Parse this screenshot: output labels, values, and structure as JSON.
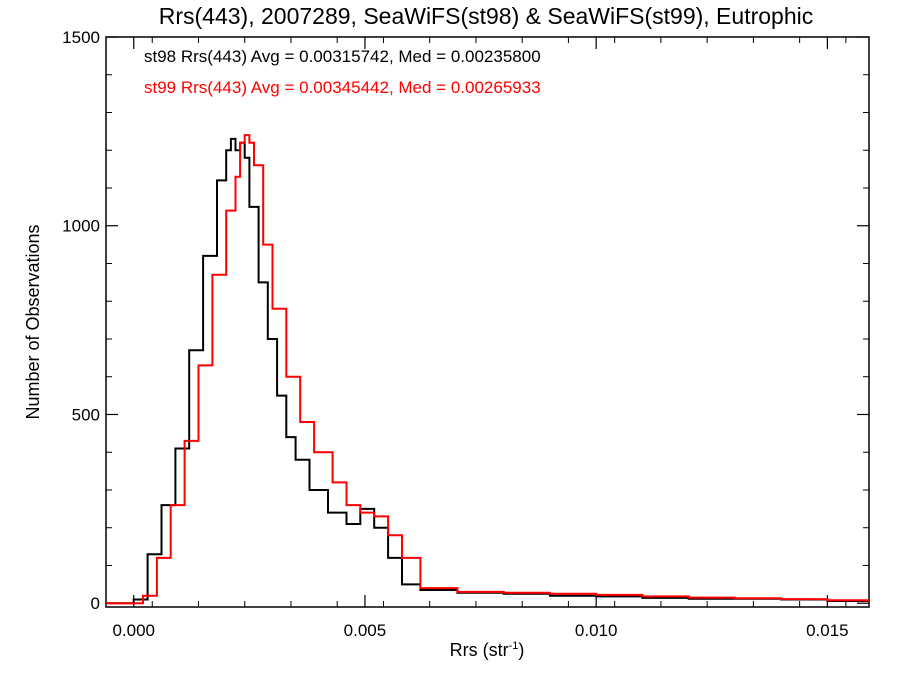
{
  "chart_data": {
    "type": "line",
    "title": "Rrs(443), 2007289, SeaWiFS(st98) & SeaWiFS(st99), Eutrophic",
    "xlabel": "Rrs (str",
    "xlabel_sup": "-1",
    "xlabel_close": ")",
    "ylabel": "Number of Observations",
    "xlim": [
      -0.0006,
      0.0159
    ],
    "ylim": [
      -10,
      1500
    ],
    "xticks": [
      0.0,
      0.005,
      0.01,
      0.015
    ],
    "xtick_labels": [
      "0.000",
      "0.005",
      "0.010",
      "0.015"
    ],
    "yticks": [
      0,
      500,
      1000,
      1500
    ],
    "ytick_labels": [
      "0",
      "500",
      "1000",
      "1500"
    ],
    "series": [
      {
        "legend": "st98 Rrs(443) Avg = 0.00315742, Med = 0.00235800",
        "color": "#000000",
        "x": [
          -0.0006,
          0.0,
          0.0003,
          0.0006,
          0.0009,
          0.0012,
          0.0015,
          0.0018,
          0.002,
          0.0021,
          0.0022,
          0.0023,
          0.0024,
          0.0025,
          0.0027,
          0.0029,
          0.0031,
          0.0033,
          0.0035,
          0.0038,
          0.0042,
          0.0046,
          0.0049,
          0.0052,
          0.0055,
          0.0058,
          0.0062,
          0.007,
          0.008,
          0.009,
          0.01,
          0.011,
          0.012,
          0.013,
          0.014,
          0.015,
          0.0159
        ],
        "y": [
          0,
          10,
          130,
          260,
          410,
          670,
          920,
          1120,
          1200,
          1230,
          1200,
          1220,
          1180,
          1050,
          850,
          700,
          550,
          440,
          380,
          300,
          240,
          210,
          250,
          200,
          120,
          50,
          35,
          28,
          25,
          20,
          18,
          14,
          12,
          12,
          10,
          6,
          3
        ]
      },
      {
        "legend": "st99 Rrs(443) Avg = 0.00345442, Med = 0.00265933",
        "color": "#ff0000",
        "x": [
          -0.0006,
          0.0,
          0.0002,
          0.0005,
          0.0008,
          0.0011,
          0.0014,
          0.0017,
          0.002,
          0.0022,
          0.0023,
          0.0024,
          0.0025,
          0.0026,
          0.0028,
          0.003,
          0.0033,
          0.0036,
          0.0039,
          0.0043,
          0.0046,
          0.0049,
          0.0052,
          0.0055,
          0.0058,
          0.0062,
          0.007,
          0.008,
          0.009,
          0.01,
          0.011,
          0.012,
          0.013,
          0.014,
          0.015,
          0.0159
        ],
        "y": [
          0,
          0,
          20,
          120,
          260,
          430,
          630,
          870,
          1040,
          1130,
          1220,
          1240,
          1220,
          1160,
          950,
          780,
          600,
          480,
          400,
          320,
          260,
          240,
          230,
          180,
          120,
          40,
          30,
          28,
          25,
          22,
          18,
          15,
          13,
          11,
          8,
          4
        ]
      }
    ],
    "legend_position": "top-left",
    "grid": false
  }
}
